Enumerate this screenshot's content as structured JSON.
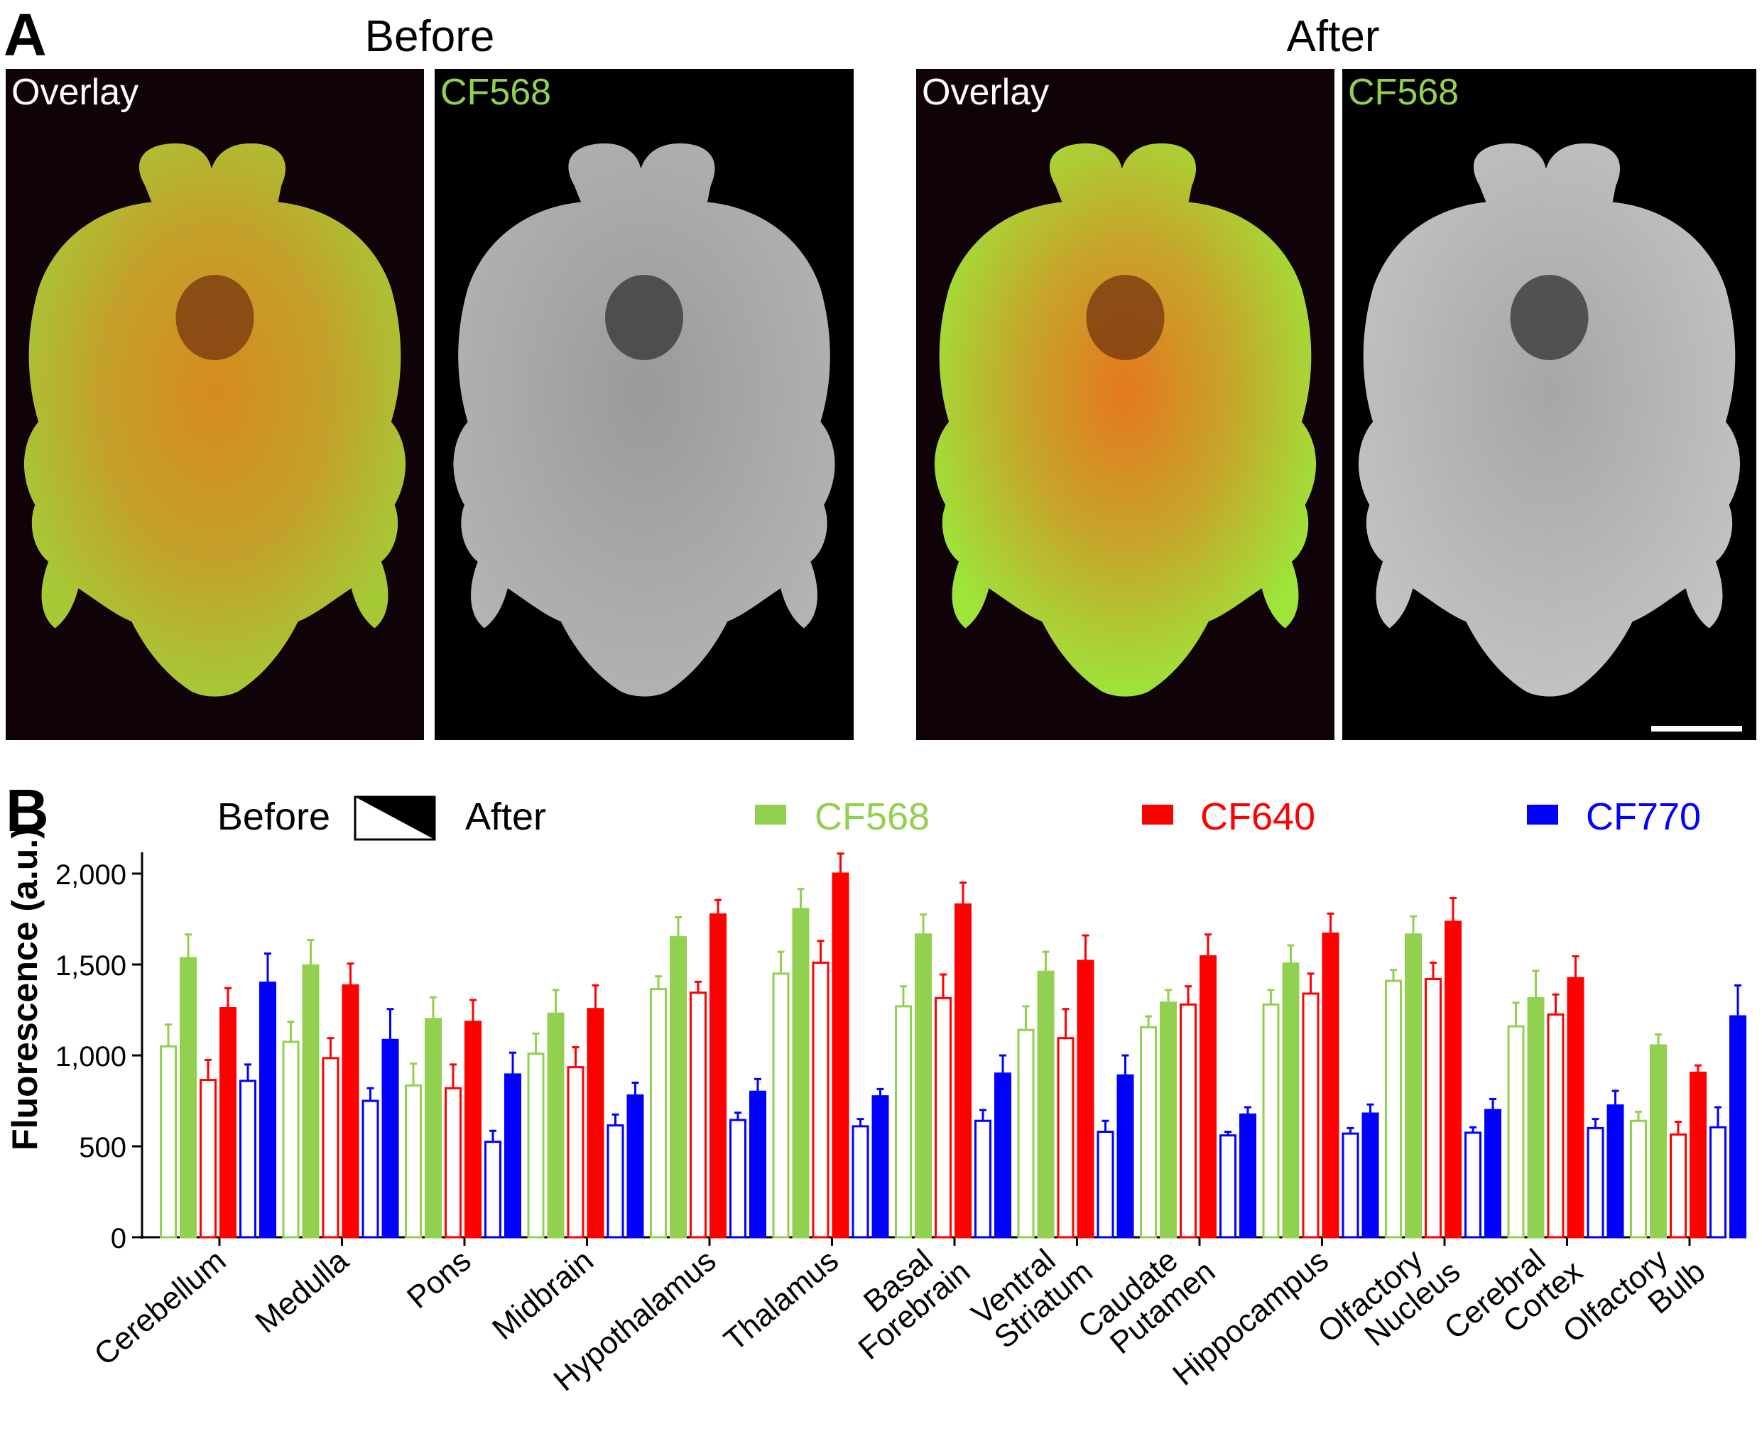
{
  "panel_a": {
    "label": "A",
    "group_before": "Before",
    "group_after": "After",
    "panels": [
      {
        "label": "Overlay",
        "label_color": "#ffffff",
        "style": "overlay"
      },
      {
        "label": "CF568",
        "label_color": "#92d050",
        "style": "gray"
      },
      {
        "label": "Overlay",
        "label_color": "#ffffff",
        "style": "overlay-bright"
      },
      {
        "label": "CF568",
        "label_color": "#92d050",
        "style": "gray-bright"
      }
    ]
  },
  "chart_data": {
    "type": "bar",
    "panel_label": "B",
    "ylabel": "Fluorescence (a.u.)",
    "ylim": [
      0,
      2000
    ],
    "yticks": [
      0,
      500,
      1000,
      1500,
      2000
    ],
    "ytick_labels": [
      "0",
      "500",
      "1,000",
      "1,500",
      "2,000"
    ],
    "legend_before": "Before",
    "legend_after": "After",
    "legend": [
      {
        "name": "CF568",
        "color": "#92d050"
      },
      {
        "name": "CF640",
        "color": "#ff0000"
      },
      {
        "name": "CF770",
        "color": "#0000ff"
      }
    ],
    "categories": [
      [
        "Cerebellum"
      ],
      [
        "Medulla"
      ],
      [
        "Pons"
      ],
      [
        "Midbrain"
      ],
      [
        "Hypothalamus"
      ],
      [
        "Thalamus"
      ],
      [
        "Basal",
        "Forebrain"
      ],
      [
        "Ventral",
        "Striatum"
      ],
      [
        "Caudate",
        "Putamen"
      ],
      [
        "Hippocampus"
      ],
      [
        "Olfactory",
        "Nucleus"
      ],
      [
        "Cerebral",
        "Cortex"
      ],
      [
        "Olfactory",
        "Bulb"
      ]
    ],
    "series": [
      {
        "name": "CF568",
        "phase": "Before",
        "color": "#92d050",
        "values": [
          1050,
          1075,
          835,
          1010,
          1365,
          1450,
          1270,
          1140,
          1155,
          1280,
          1410,
          1160,
          640
        ],
        "errors": [
          120,
          110,
          120,
          110,
          70,
          120,
          110,
          130,
          60,
          80,
          60,
          130,
          50
        ]
      },
      {
        "name": "CF568",
        "phase": "After",
        "color": "#92d050",
        "values": [
          1535,
          1495,
          1200,
          1230,
          1650,
          1805,
          1665,
          1460,
          1290,
          1505,
          1665,
          1315,
          1055
        ],
        "errors": [
          130,
          140,
          120,
          130,
          110,
          110,
          110,
          110,
          70,
          100,
          100,
          150,
          60
        ]
      },
      {
        "name": "CF640",
        "phase": "Before",
        "color": "#ff0000",
        "values": [
          865,
          985,
          820,
          935,
          1345,
          1510,
          1315,
          1095,
          1280,
          1340,
          1420,
          1225,
          565
        ],
        "errors": [
          110,
          110,
          130,
          110,
          60,
          120,
          130,
          160,
          100,
          110,
          90,
          110,
          70
        ]
      },
      {
        "name": "CF640",
        "phase": "After",
        "color": "#ff0000",
        "values": [
          1260,
          1385,
          1185,
          1255,
          1775,
          2000,
          1830,
          1520,
          1545,
          1670,
          1735,
          1425,
          905
        ],
        "errors": [
          110,
          120,
          120,
          130,
          80,
          110,
          120,
          140,
          120,
          110,
          130,
          120,
          40
        ]
      },
      {
        "name": "CF770",
        "phase": "Before",
        "color": "#0000ff",
        "values": [
          860,
          750,
          525,
          615,
          645,
          610,
          640,
          580,
          560,
          570,
          575,
          600,
          605
        ],
        "errors": [
          90,
          70,
          60,
          60,
          40,
          40,
          60,
          60,
          20,
          30,
          30,
          50,
          110
        ]
      },
      {
        "name": "CF770",
        "phase": "After",
        "color": "#0000ff",
        "values": [
          1400,
          1085,
          895,
          780,
          800,
          775,
          900,
          890,
          675,
          680,
          700,
          725,
          1215
        ],
        "errors": [
          160,
          170,
          120,
          70,
          70,
          40,
          100,
          110,
          40,
          50,
          60,
          80,
          170
        ]
      }
    ]
  }
}
